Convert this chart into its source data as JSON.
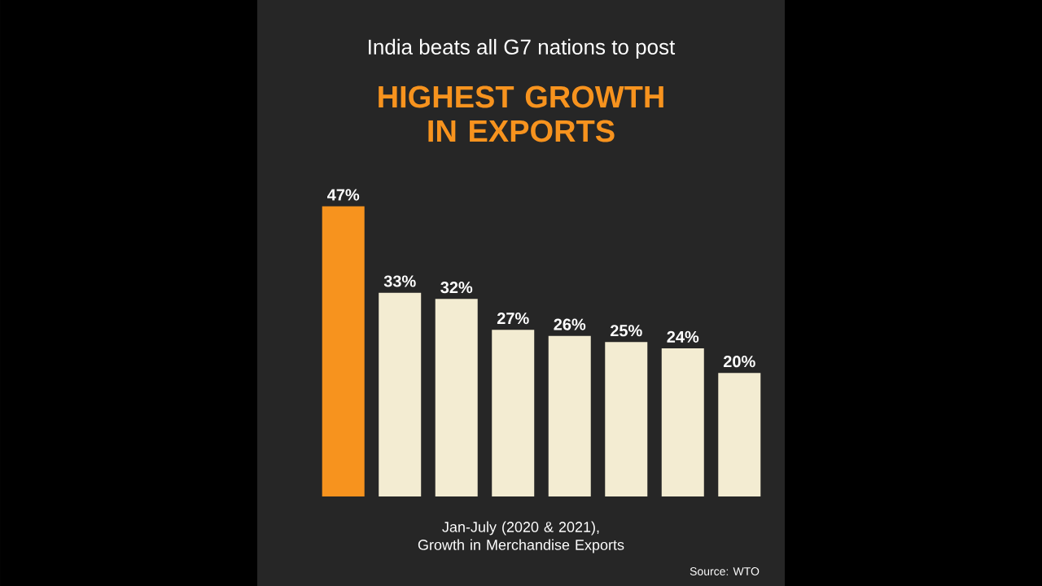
{
  "chart_data": {
    "type": "bar",
    "title": "India beats all G7 nations to post",
    "subtitle": "HIGHEST GROWTH IN EXPORTS",
    "categories": [
      null,
      null,
      null,
      null,
      null,
      null,
      null,
      null
    ],
    "values": [
      47,
      33,
      32,
      27,
      26,
      25,
      24,
      20
    ],
    "colors": [
      "#f7931e",
      "#f3ecd2",
      "#f3ecd2",
      "#f3ecd2",
      "#f3ecd2",
      "#f3ecd2",
      "#f3ecd2",
      "#f3ecd2"
    ],
    "value_labels": [
      "47%",
      "33%",
      "32%",
      "27%",
      "26%",
      "25%",
      "24%",
      "20%"
    ],
    "annotations": [
      "Jan-July (2020 & 2021), Growth in Merchandise Exports",
      "Source: WTO"
    ]
  }
}
